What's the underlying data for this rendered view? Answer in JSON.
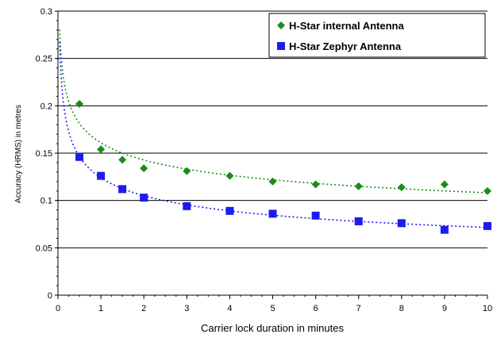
{
  "chart_data": {
    "type": "scatter",
    "xlabel": "Carrier lock duration in minutes",
    "ylabel": "Accuracy (HRMS) in metres",
    "xlim": [
      0,
      10
    ],
    "ylim": [
      0,
      0.3
    ],
    "x_ticks": [
      "0",
      "1",
      "2",
      "3",
      "4",
      "5",
      "6",
      "7",
      "8",
      "9",
      "10"
    ],
    "y_ticks": [
      "0",
      "0.05",
      "0.1",
      "0.15",
      "0.2",
      "0.25",
      "0.3"
    ],
    "grid": "horizontal major gridlines",
    "legend": "top-right",
    "series": [
      {
        "name": "H-Star internal Antenna",
        "marker": "diamond",
        "color": "#1a8c1a",
        "trendline": "dotted, fitted",
        "x": [
          0.5,
          1,
          1.5,
          2,
          3,
          4,
          5,
          6,
          7,
          8,
          9,
          10
        ],
        "y": [
          0.202,
          0.154,
          0.143,
          0.134,
          0.131,
          0.126,
          0.12,
          0.117,
          0.115,
          0.114,
          0.117,
          0.11
        ]
      },
      {
        "name": "H-Star Zephyr Antenna",
        "marker": "square",
        "color": "#1c1cf0",
        "trendline": "dotted, fitted",
        "x": [
          0.5,
          1,
          1.5,
          2,
          3,
          4,
          5,
          6,
          7,
          8,
          9,
          10
        ],
        "y": [
          0.146,
          0.126,
          0.112,
          0.103,
          0.094,
          0.089,
          0.086,
          0.084,
          0.078,
          0.076,
          0.069,
          0.073
        ]
      }
    ]
  }
}
